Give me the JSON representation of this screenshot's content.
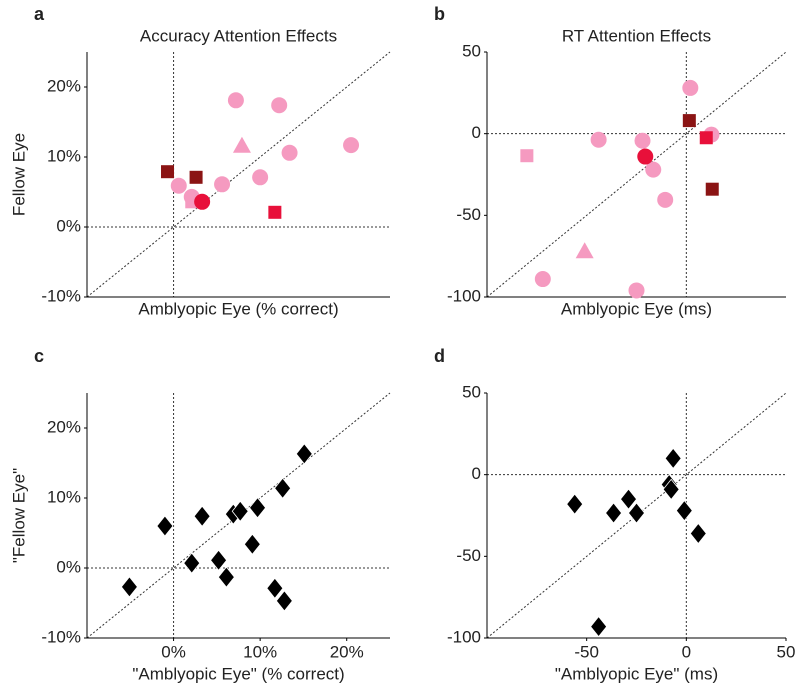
{
  "chart_data": [
    {
      "type": "scatter",
      "label": "a",
      "title": "Accuracy Attention Effects",
      "xlabel": "Amblyopic Eye (% correct)",
      "ylabel": "Fellow Eye",
      "xlim": [
        -10,
        25
      ],
      "ylim": [
        -10,
        25
      ],
      "yticks": [
        {
          "value": -10,
          "label": "-10%"
        },
        {
          "value": 0,
          "label": "0%"
        },
        {
          "value": 10,
          "label": "10%"
        },
        {
          "value": 20,
          "label": "20%"
        }
      ],
      "zero_lines": true,
      "identity_line": true,
      "series": [
        {
          "marker": "circle",
          "color": "#f59ac0",
          "x": [
            7.2,
            12.2,
            13.4,
            10,
            20.5,
            0.6,
            5.6,
            2.1
          ],
          "values": [
            18.1,
            17.4,
            10.6,
            7.1,
            11.7,
            5.9,
            6.1,
            4.3
          ]
        },
        {
          "marker": "triangle",
          "color": "#f59ac0",
          "x": [
            7.9
          ],
          "values": [
            11.6
          ]
        },
        {
          "marker": "square",
          "color": "#f59ac0",
          "x": [
            2.1
          ],
          "values": [
            3.6
          ]
        },
        {
          "marker": "square",
          "color": "#8b1414",
          "x": [
            -0.7,
            2.6
          ],
          "values": [
            7.9,
            7.1
          ]
        },
        {
          "marker": "circle",
          "color": "#e8103a",
          "x": [
            3.3
          ],
          "values": [
            3.6
          ]
        },
        {
          "marker": "square",
          "color": "#e8103a",
          "x": [
            11.7
          ],
          "values": [
            2.1
          ]
        }
      ]
    },
    {
      "type": "scatter",
      "label": "b",
      "title": "RT Attention Effects",
      "xlabel": "Amblyopic Eye (ms)",
      "xlim": [
        -100,
        50
      ],
      "ylim": [
        -100,
        50
      ],
      "yticks": [
        -100,
        -50,
        0,
        50
      ],
      "zero_lines": true,
      "identity_line": true,
      "series": [
        {
          "marker": "circle",
          "color": "#f59ac0",
          "x": [
            2,
            12.6,
            -44,
            -22,
            -16.6,
            -10.6,
            -72,
            -25
          ],
          "values": [
            28,
            -0.6,
            -3.7,
            -4.3,
            -22,
            -40.5,
            -89,
            -96
          ]
        },
        {
          "marker": "triangle",
          "color": "#f59ac0",
          "x": [
            -51
          ],
          "values": [
            -72
          ]
        },
        {
          "marker": "square",
          "color": "#f59ac0",
          "x": [
            -80
          ],
          "values": [
            -13.5
          ]
        },
        {
          "marker": "square",
          "color": "#8b1414",
          "x": [
            1.5,
            13
          ],
          "values": [
            8,
            -34
          ]
        },
        {
          "marker": "circle",
          "color": "#e8103a",
          "x": [
            -20.6
          ],
          "values": [
            -14
          ]
        },
        {
          "marker": "square",
          "color": "#e8103a",
          "x": [
            10
          ],
          "values": [
            -2.5
          ]
        }
      ]
    },
    {
      "type": "scatter",
      "label": "c",
      "xlabel": "\"Amblyopic Eye\" (% correct)",
      "ylabel": "\"Fellow Eye\"",
      "xlim": [
        -10,
        25
      ],
      "ylim": [
        -10,
        25
      ],
      "xticks": [
        {
          "value": 0,
          "label": "0%"
        },
        {
          "value": 10,
          "label": "10%"
        },
        {
          "value": 20,
          "label": "20%"
        }
      ],
      "yticks": [
        {
          "value": -10,
          "label": "-10%"
        },
        {
          "value": 0,
          "label": "0%"
        },
        {
          "value": 10,
          "label": "10%"
        },
        {
          "value": 20,
          "label": "20%"
        }
      ],
      "zero_lines": true,
      "identity_line": true,
      "series": [
        {
          "marker": "diamond",
          "color": "#000000",
          "x": [
            -5.1,
            -1,
            3.3,
            2.1,
            5.2,
            6.1,
            6.9,
            7.7,
            9.7,
            9.1,
            11.7,
            12.8,
            12.6,
            15.1
          ],
          "values": [
            -2.7,
            6,
            7.4,
            0.7,
            1.1,
            -1.3,
            7.7,
            8.1,
            8.6,
            3.4,
            -2.9,
            -4.7,
            11.4,
            16.3
          ]
        }
      ]
    },
    {
      "type": "scatter",
      "label": "d",
      "xlabel": "\"Amblyopic Eye\" (ms)",
      "xlim": [
        -100,
        50
      ],
      "ylim": [
        -100,
        50
      ],
      "xticks": [
        -50,
        0,
        50
      ],
      "yticks": [
        -100,
        -50,
        0,
        50
      ],
      "zero_lines": true,
      "identity_line": true,
      "series": [
        {
          "marker": "diamond",
          "color": "#000000",
          "x": [
            -56,
            -6.6,
            -8.6,
            -7.6,
            -29,
            -36.5,
            -25,
            -1,
            6,
            -44
          ],
          "values": [
            -18,
            10,
            -6,
            -9,
            -15,
            -23.5,
            -23.5,
            -22,
            -36,
            -93
          ]
        }
      ]
    }
  ]
}
